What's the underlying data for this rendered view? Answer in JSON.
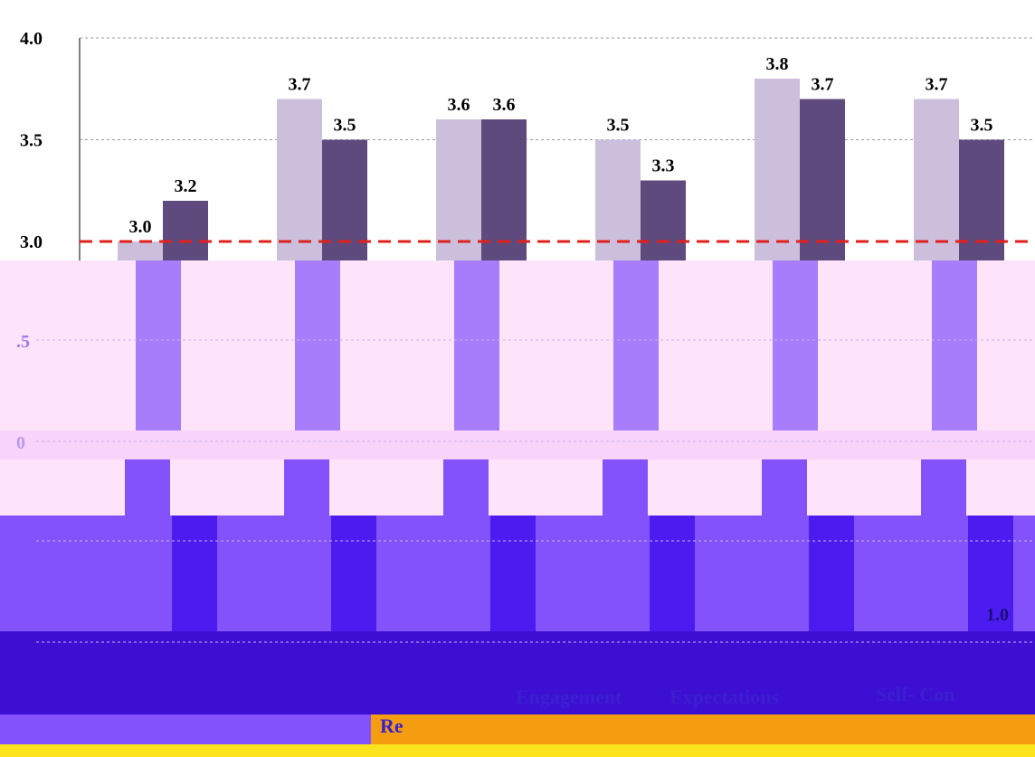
{
  "chart_data": {
    "type": "bar",
    "categories": [
      "Re",
      "",
      "",
      "Engagement",
      "Expectations",
      "Self- Con"
    ],
    "series": [
      {
        "values": [
          3.0,
          3.7,
          3.6,
          3.5,
          3.8,
          3.7
        ],
        "color": "#cbbfdc"
      },
      {
        "values": [
          3.2,
          3.5,
          3.6,
          3.3,
          3.7,
          3.5
        ],
        "color": "#5f4a7e"
      }
    ],
    "data_labels": [
      [
        "3.0",
        "3.7",
        "3.6",
        "3.5",
        "3.8",
        "3.7"
      ],
      [
        "3.2",
        "3.5",
        "3.6",
        "3.3",
        "3.7",
        "3.5"
      ]
    ],
    "y_ticks": [
      "4.0",
      "3.5",
      "3.0"
    ],
    "ylim": [
      3.0,
      4.0
    ],
    "reference_line": {
      "value": 3.0,
      "color": "#e0201a",
      "style": "dashed"
    },
    "grid": true,
    "title": "",
    "xlabel": "",
    "ylabel": ""
  },
  "colors": {
    "band_pink": "#fde4fb",
    "band_lavender": "#f7ccfa",
    "band_purple": "#8452fb",
    "band_blue": "#4b1bf0",
    "band_navy": "#3d0fd3",
    "band_orange": "#f49d10",
    "band_yellow": "#fbe31d",
    "bar_light_shadow": "#a77dfb",
    "bar_dark_shadow": "#3d0fd3"
  },
  "ghost_labels": {
    "tick_mid": ".5",
    "tick_zero": "0",
    "tick_low": "1.0",
    "tick_low2": "1.0"
  }
}
